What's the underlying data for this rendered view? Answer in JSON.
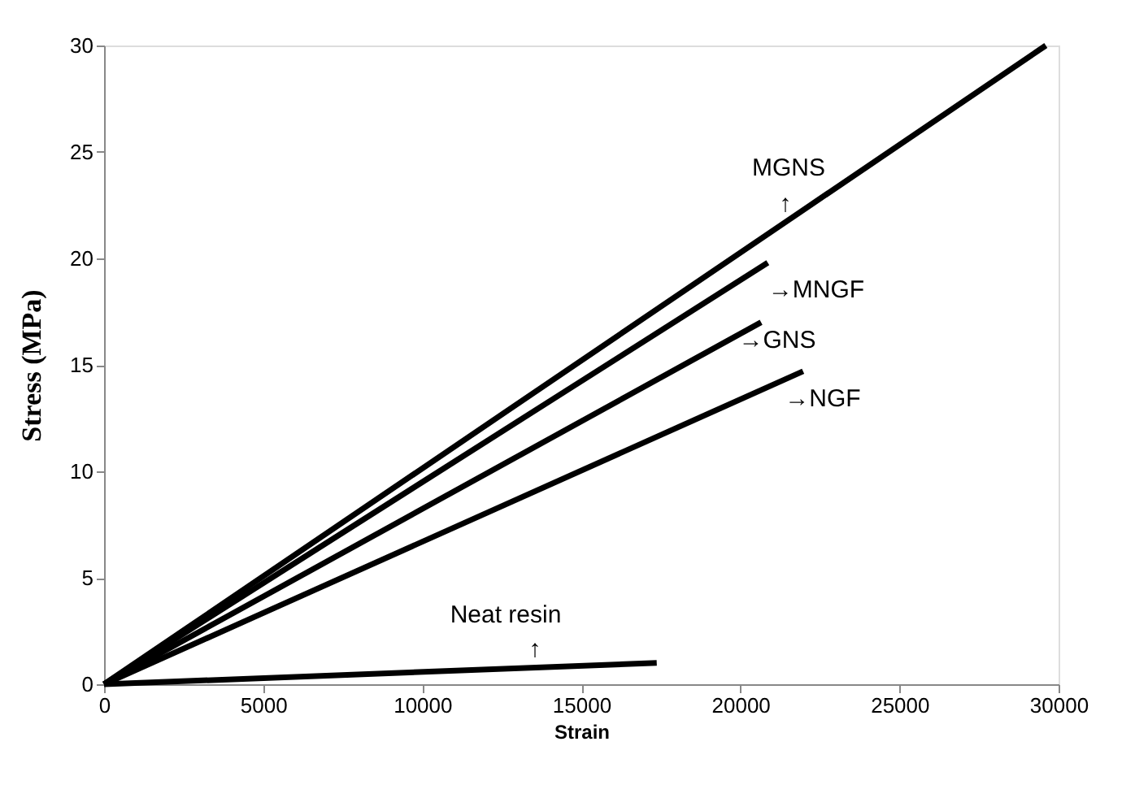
{
  "chart_data": {
    "type": "line",
    "xlabel": "Strain",
    "ylabel": "Stress  (MPa)",
    "xlim": [
      0,
      30000
    ],
    "xticks": [
      0,
      5000,
      10000,
      15000,
      20000,
      25000,
      30000
    ],
    "ylim": [
      0,
      30
    ],
    "yticks": [
      0,
      5,
      10,
      15,
      20,
      25,
      30
    ],
    "grid": false,
    "marker": "none",
    "line_style": "solid",
    "series": [
      {
        "color": "#000000",
        "x": [
          0,
          29600
        ],
        "values": [
          0,
          30
        ]
      },
      {
        "color": "#000000",
        "x": [
          0,
          20860
        ],
        "values": [
          0,
          19.8
        ]
      },
      {
        "color": "#000000",
        "x": [
          0,
          20650
        ],
        "values": [
          0,
          17.0
        ]
      },
      {
        "color": "#000000",
        "x": [
          0,
          21970
        ],
        "values": [
          0,
          14.7
        ]
      },
      {
        "color": "#000000",
        "x": [
          0,
          17370
        ],
        "values": [
          0,
          1.0
        ]
      }
    ],
    "annotations": [
      "MGNS",
      "↑",
      "→MNGF",
      "→GNS",
      "→NGF",
      "Neat resin",
      "↑"
    ]
  }
}
